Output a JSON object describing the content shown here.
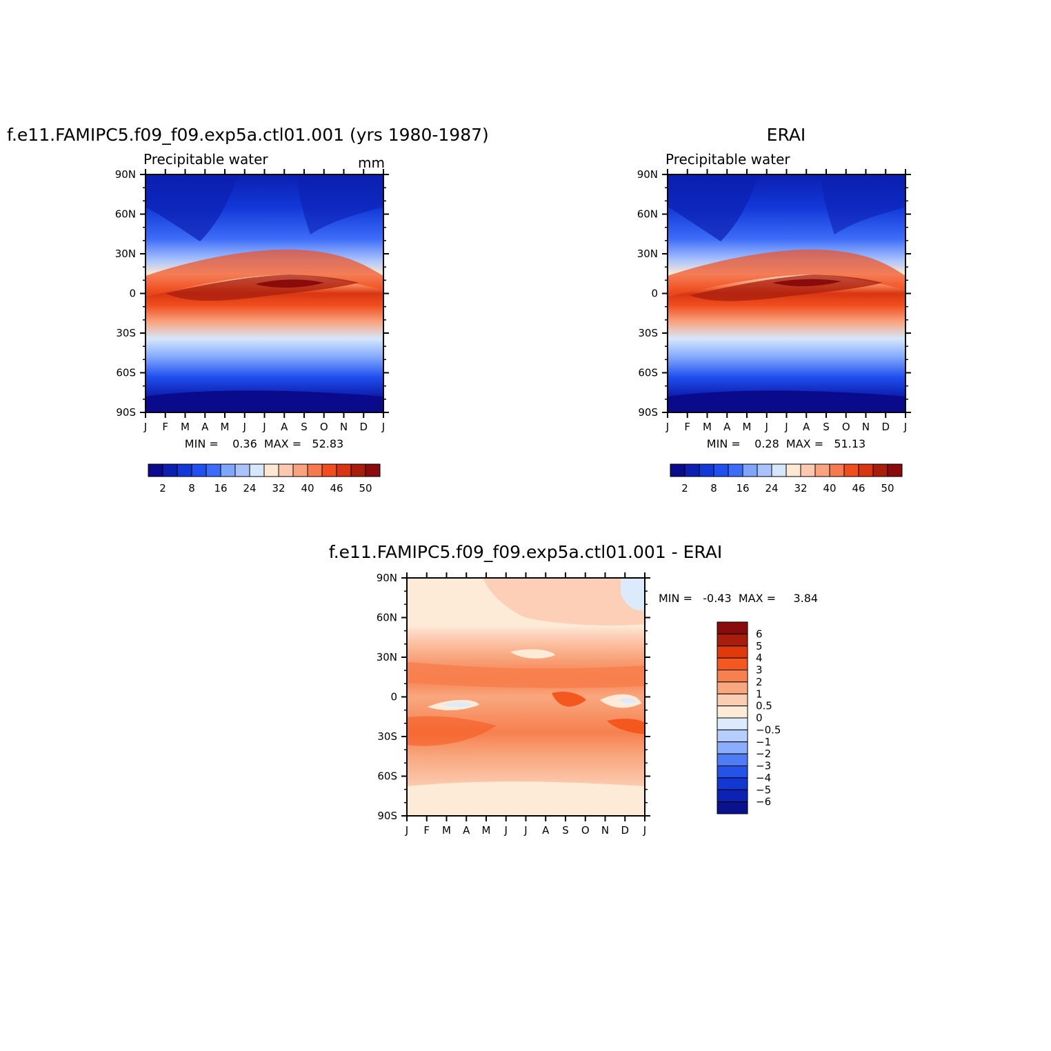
{
  "chart_data": [
    {
      "type": "heatmap",
      "id": "model",
      "title": "f.e11.FAMIPC5.f09_f09.exp5a.ctl01.001 (yrs 1980-1987)",
      "subtitle": "Precipitable water",
      "units": "mm",
      "x_tick_labels": [
        "J",
        "F",
        "M",
        "A",
        "M",
        "J",
        "J",
        "A",
        "S",
        "O",
        "N",
        "D",
        "J"
      ],
      "y_tick_labels": [
        "90S",
        "60S",
        "30S",
        "0",
        "30N",
        "60N",
        "90N"
      ],
      "ylim": [
        -90,
        90
      ],
      "stats_text": "MIN =    0.36  MAX =   52.83",
      "min": 0.36,
      "max": 52.83,
      "colorbar": {
        "orientation": "horizontal",
        "labels": [
          "2",
          "8",
          "16",
          "24",
          "32",
          "40",
          "46",
          "50"
        ],
        "colors": [
          "#0a0a8c",
          "#0c1fb0",
          "#1238d8",
          "#2150f0",
          "#3d6cf8",
          "#7fa6fb",
          "#aac3fc",
          "#d6e7fc",
          "#fde8d4",
          "#fcc8b0",
          "#f9a47f",
          "#f77a4e",
          "#f04e1f",
          "#d83612",
          "#a81d0c",
          "#8a0b0b"
        ]
      }
    },
    {
      "type": "heatmap",
      "id": "obs",
      "title": "ERAI",
      "subtitle": "Precipitable water",
      "x_tick_labels": [
        "J",
        "F",
        "M",
        "A",
        "M",
        "J",
        "J",
        "A",
        "S",
        "O",
        "N",
        "D",
        "J"
      ],
      "y_tick_labels": [
        "90S",
        "60S",
        "30S",
        "0",
        "30N",
        "60N",
        "90N"
      ],
      "ylim": [
        -90,
        90
      ],
      "stats_text": "MIN =    0.28  MAX =   51.13",
      "min": 0.28,
      "max": 51.13,
      "colorbar": {
        "orientation": "horizontal",
        "labels": [
          "2",
          "8",
          "16",
          "24",
          "32",
          "40",
          "46",
          "50"
        ],
        "colors": [
          "#0a0a8c",
          "#0c1fb0",
          "#1238d8",
          "#2150f0",
          "#3d6cf8",
          "#7fa6fb",
          "#aac3fc",
          "#d6e7fc",
          "#fde8d4",
          "#fcc8b0",
          "#f9a47f",
          "#f77a4e",
          "#f04e1f",
          "#d83612",
          "#a81d0c",
          "#8a0b0b"
        ]
      }
    },
    {
      "type": "heatmap",
      "id": "diff",
      "title": "f.e11.FAMIPC5.f09_f09.exp5a.ctl01.001 - ERAI",
      "x_tick_labels": [
        "J",
        "F",
        "M",
        "A",
        "M",
        "J",
        "J",
        "A",
        "S",
        "O",
        "N",
        "D",
        "J"
      ],
      "y_tick_labels": [
        "90S",
        "60S",
        "30S",
        "0",
        "30N",
        "60N",
        "90N"
      ],
      "ylim": [
        -90,
        90
      ],
      "stats_text": "MIN =   -0.43  MAX =     3.84",
      "min": -0.43,
      "max": 3.84,
      "colorbar": {
        "orientation": "vertical",
        "labels": [
          "6",
          "5",
          "4",
          "3",
          "2",
          "1",
          "0.5",
          "0",
          "-0.5",
          "-1",
          "-2",
          "-3",
          "-4",
          "-5",
          "-6"
        ],
        "colors": [
          "#8a0b0b",
          "#a81d0c",
          "#e03a0c",
          "#f5581e",
          "#f7804f",
          "#f9a77f",
          "#fcccb2",
          "#fdebd8",
          "#dcebfb",
          "#b6cefc",
          "#8aaefb",
          "#4e7cf5",
          "#2453e9",
          "#1337d2",
          "#0b22b3",
          "#09118e"
        ]
      }
    }
  ]
}
